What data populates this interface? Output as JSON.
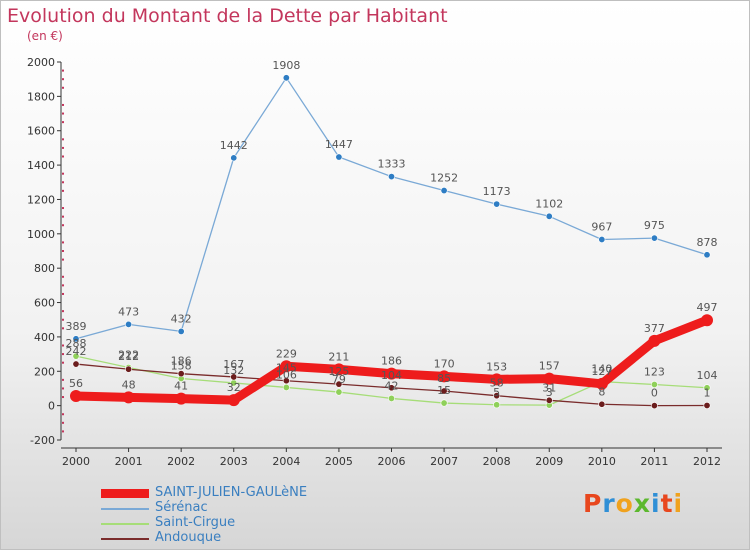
{
  "title": "Evolution du Montant de la Dette par Habitant",
  "subtitle": "(en €)",
  "logo": {
    "letters": [
      "P",
      "r",
      "o",
      "x",
      "i",
      "t",
      "i"
    ],
    "colors": [
      "#e8471e",
      "#2f8fd6",
      "#f0a21e",
      "#5cb82e",
      "#2f8fd6",
      "#e8471e",
      "#f0a21e"
    ]
  },
  "chart_data": {
    "type": "line",
    "x": [
      2000,
      2001,
      2002,
      2003,
      2004,
      2005,
      2006,
      2007,
      2008,
      2009,
      2010,
      2011,
      2012
    ],
    "ylim": [
      -200,
      2000
    ],
    "yticks": [
      -200,
      0,
      200,
      400,
      600,
      800,
      1000,
      1200,
      1400,
      1600,
      1800,
      2000
    ],
    "grid": false,
    "legend_position": "bottom-left",
    "series": [
      {
        "name": "SAINT-JULIEN-GAULèNE",
        "color": "#ee1c1c",
        "marker": "#ee1c1c",
        "width": 9,
        "label_color": "#555555",
        "values": [
          56,
          48,
          41,
          32,
          229,
          211,
          186,
          170,
          153,
          157,
          127,
          377,
          497
        ]
      },
      {
        "name": "Sérénac",
        "color": "#7aa9d6",
        "marker": "#2e7dc4",
        "width": 1.3,
        "label_color": "#555555",
        "values": [
          389,
          473,
          432,
          1442,
          1908,
          1447,
          1333,
          1252,
          1173,
          1102,
          967,
          975,
          878
        ]
      },
      {
        "name": "Saint-Cirgue",
        "color": "#a6dd78",
        "marker": "#8fd05a",
        "width": 1.3,
        "label_color": "#555555",
        "values": [
          288,
          222,
          158,
          132,
          106,
          79,
          42,
          15,
          5,
          3,
          140,
          123,
          104
        ]
      },
      {
        "name": "Andouque",
        "color": "#7a2c2c",
        "marker": "#6b1d1d",
        "width": 1.3,
        "label_color": "#555555",
        "values": [
          242,
          212,
          186,
          167,
          145,
          125,
          104,
          85,
          58,
          31,
          8,
          0,
          1
        ]
      }
    ]
  }
}
